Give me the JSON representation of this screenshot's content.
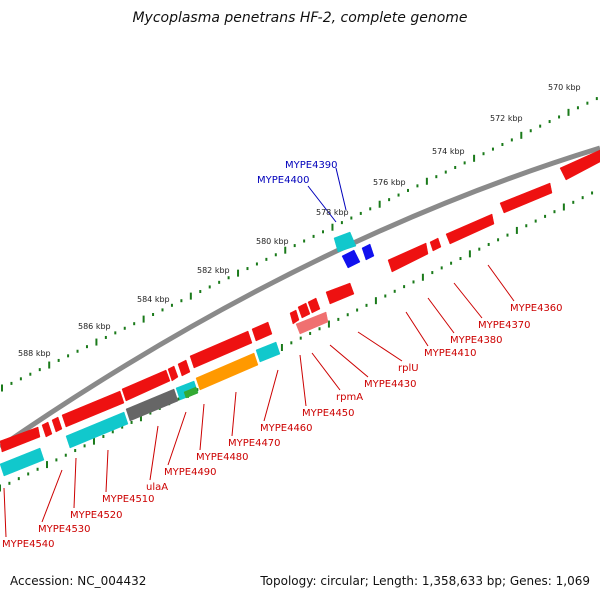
{
  "title": "Mycoplasma penetrans HF-2, complete genome",
  "accession": "Accession: NC_004432",
  "summary": "Topology: circular; Length: 1,358,633 bp; Genes: 1,069",
  "colors": {
    "backbone": "#8a8a8a",
    "tick": "#1a7a1a",
    "red": "#ee1111",
    "cyan": "#11c8cc",
    "blue": "#1111ee",
    "orange": "#ff9900",
    "gray": "#666666",
    "green": "#33aa33",
    "pink": "#f07070",
    "label_red": "#cc0000",
    "label_blue": "#0000bb"
  },
  "ticks": [
    "570 kbp",
    "572 kbp",
    "574 kbp",
    "576 kbp",
    "578 kbp",
    "580 kbp",
    "582 kbp",
    "584 kbp",
    "586 kbp",
    "588 kbp"
  ],
  "labels": {
    "upper": [
      {
        "text": "MYPE4390",
        "color": "blue"
      },
      {
        "text": "MYPE4400",
        "color": "blue"
      }
    ],
    "lower": [
      {
        "text": "MYPE4360",
        "color": "red"
      },
      {
        "text": "MYPE4370",
        "color": "red"
      },
      {
        "text": "MYPE4380",
        "color": "red"
      },
      {
        "text": "MYPE4410",
        "color": "red"
      },
      {
        "text": "rplU",
        "color": "red"
      },
      {
        "text": "MYPE4430",
        "color": "red"
      },
      {
        "text": "rpmA",
        "color": "red"
      },
      {
        "text": "MYPE4450",
        "color": "red"
      },
      {
        "text": "MYPE4460",
        "color": "red"
      },
      {
        "text": "MYPE4470",
        "color": "red"
      },
      {
        "text": "MYPE4480",
        "color": "red"
      },
      {
        "text": "MYPE4490",
        "color": "red"
      },
      {
        "text": "ulaA",
        "color": "red"
      },
      {
        "text": "MYPE4510",
        "color": "red"
      },
      {
        "text": "MYPE4520",
        "color": "red"
      },
      {
        "text": "MYPE4530",
        "color": "red"
      },
      {
        "text": "MYPE4540",
        "color": "red"
      }
    ]
  }
}
